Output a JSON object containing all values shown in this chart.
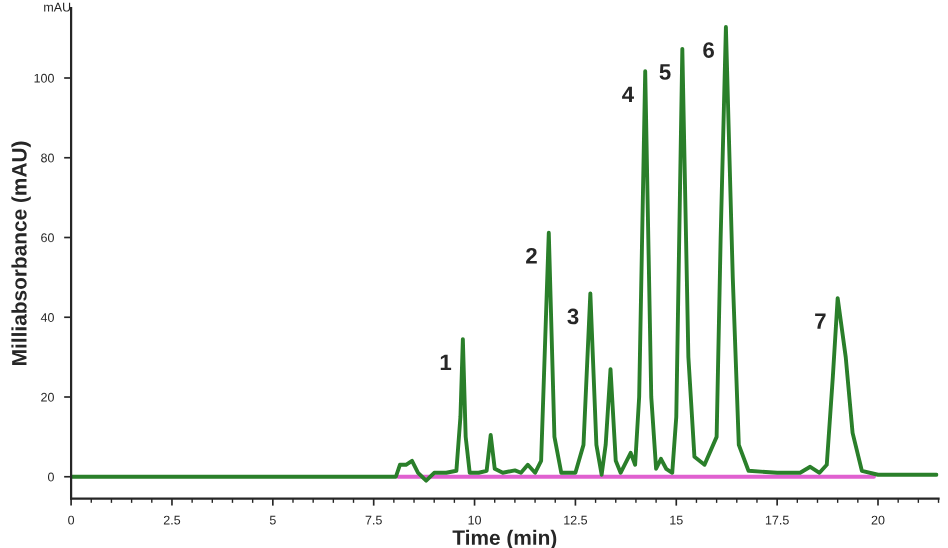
{
  "chart_data": {
    "type": "line",
    "xlabel": "Time (min)",
    "ylabel": "Milliabsorbance (mAU)",
    "xlim": [
      0,
      21.5
    ],
    "ylim": [
      -5.5,
      117.5
    ],
    "xticks": [
      0,
      2.5,
      5,
      7.5,
      10,
      12.5,
      15,
      17.5,
      20
    ],
    "yticks": [
      0,
      20,
      40,
      60,
      80,
      100
    ],
    "grid": false,
    "marker": "none",
    "line_style": "solid",
    "series": [
      {
        "color": "#e060d0",
        "x": [
          8.1,
          19.9
        ],
        "values": [
          0,
          0
        ]
      },
      {
        "color": "#2a7f2a",
        "x": [
          0,
          8.05,
          8.15,
          8.3,
          8.45,
          8.6,
          8.8,
          9.0,
          9.3,
          9.55,
          9.65,
          9.71,
          9.78,
          9.88,
          10.1,
          10.3,
          10.4,
          10.5,
          10.7,
          11.0,
          11.15,
          11.32,
          11.5,
          11.65,
          11.84,
          11.98,
          12.15,
          12.5,
          12.7,
          12.87,
          13.02,
          13.15,
          13.25,
          13.37,
          13.5,
          13.62,
          13.87,
          13.98,
          14.08,
          14.23,
          14.38,
          14.5,
          14.62,
          14.75,
          14.9,
          15.0,
          15.15,
          15.3,
          15.45,
          15.7,
          16.0,
          16.1,
          16.23,
          16.4,
          16.55,
          16.79,
          17.5,
          18.07,
          18.32,
          18.55,
          18.73,
          18.88,
          19.0,
          19.2,
          19.37,
          19.6,
          20.0,
          21.45
        ],
        "values": [
          0,
          0,
          3,
          3,
          4,
          1,
          -1,
          1,
          1,
          1.5,
          15,
          34.5,
          10,
          1,
          1,
          1.5,
          10.5,
          2,
          1,
          1.6,
          1,
          3,
          1,
          4,
          61.2,
          10,
          1,
          1,
          8,
          46,
          8,
          0.5,
          8,
          27,
          4,
          1,
          6,
          3,
          20,
          101.7,
          20,
          2,
          4.5,
          2,
          1,
          15,
          107.3,
          30,
          5,
          3,
          10,
          60,
          112.8,
          50,
          8,
          1.5,
          1,
          1,
          2.5,
          1,
          3,
          25,
          44.8,
          30,
          11,
          1.5,
          0.5,
          0.5
        ]
      }
    ],
    "annotations": [
      {
        "text": "1",
        "x": 9.71,
        "y": 34.5
      },
      {
        "text": "2",
        "x": 11.84,
        "y": 61.2
      },
      {
        "text": "3",
        "x": 12.87,
        "y": 46
      },
      {
        "text": "4",
        "x": 14.23,
        "y": 101.7
      },
      {
        "text": "5",
        "x": 15.15,
        "y": 107.3
      },
      {
        "text": "6",
        "x": 16.23,
        "y": 112.8
      },
      {
        "text": "7",
        "x": 19.0,
        "y": 44.8
      },
      "mAU"
    ]
  }
}
